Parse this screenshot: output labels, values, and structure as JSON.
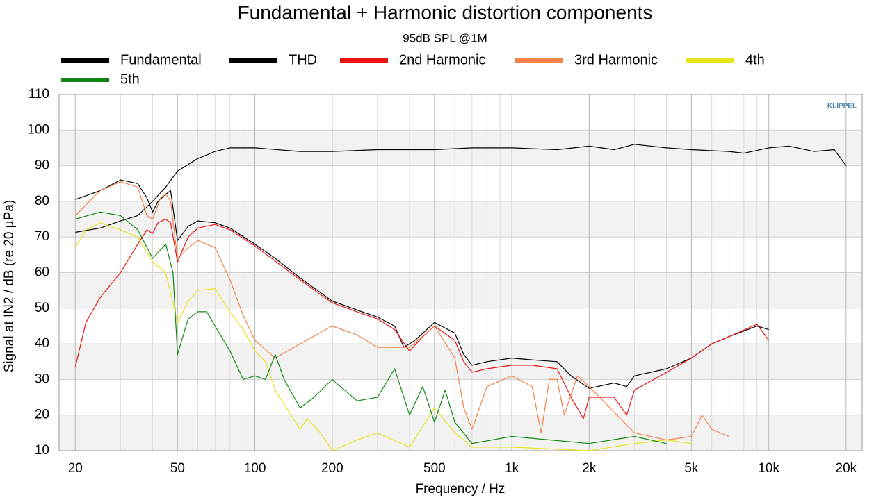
{
  "chart_data": {
    "type": "line",
    "title": "Fundamental + Harmonic distortion components",
    "subtitle": "95dB SPL @1M",
    "x_label": "Frequency / Hz",
    "y_label": "Signal at IN2 / dB (re 20 µPa)",
    "logo": "KLIPPEL",
    "x_log": true,
    "xlim": [
      17.3,
      23100
    ],
    "ylim": [
      10,
      110
    ],
    "xticks": [
      20,
      50,
      100,
      200,
      500,
      {
        "value": 1000,
        "label": "1k"
      },
      {
        "value": 2000,
        "label": "2k"
      },
      {
        "value": 5000,
        "label": "5k"
      },
      {
        "value": 10000,
        "label": "10k"
      },
      {
        "value": 20000,
        "label": "20k"
      }
    ],
    "yticks": [
      10,
      20,
      30,
      40,
      50,
      60,
      70,
      80,
      90,
      100,
      110
    ],
    "grid": true,
    "minor_grid": true,
    "alternate_bands": true,
    "legend": "top",
    "series": [
      {
        "name": "Fundamental",
        "color": "#000000",
        "x": [
          20,
          25,
          30,
          35,
          40,
          45,
          50,
          60,
          70,
          80,
          100,
          150,
          200,
          300,
          400,
          500,
          700,
          1000,
          1500,
          2000,
          2500,
          3000,
          4000,
          5000,
          7000,
          8000,
          10000,
          12000,
          15000,
          18000,
          20000
        ],
        "values": [
          71.3,
          72.5,
          74.5,
          76,
          80,
          84,
          88.5,
          92,
          94,
          95,
          95,
          94,
          94,
          94.5,
          94.5,
          94.5,
          95,
          95,
          94.5,
          95.5,
          94.5,
          96,
          95,
          94.5,
          94,
          93.5,
          95,
          95.5,
          94,
          94.5,
          90
        ]
      },
      {
        "name": "THD",
        "color": "#000000",
        "x": [
          20,
          25,
          30,
          35,
          38,
          40,
          42,
          45,
          47,
          50,
          55,
          60,
          70,
          80,
          100,
          120,
          150,
          200,
          250,
          300,
          350,
          380,
          420,
          500,
          600,
          650,
          700,
          800,
          1000,
          1200,
          1500,
          1700,
          2000,
          2500,
          2800,
          3000,
          4000,
          5000,
          6000,
          7000,
          9000,
          10000
        ],
        "values": [
          80.5,
          83,
          86,
          85,
          81,
          77,
          80,
          82,
          83,
          69,
          73,
          74.5,
          74,
          72.5,
          68,
          64,
          58.5,
          52,
          49.5,
          47.5,
          45,
          39,
          41,
          46,
          43,
          37,
          34,
          35,
          36,
          35.5,
          35,
          31,
          27.5,
          29,
          28,
          31,
          33,
          36,
          40,
          42,
          45,
          44
        ]
      },
      {
        "name": "2nd Harmonic",
        "color": "#ee1111",
        "x": [
          20,
          22,
          25,
          30,
          35,
          38,
          40,
          42,
          45,
          47,
          50,
          55,
          60,
          70,
          80,
          100,
          150,
          200,
          250,
          300,
          350,
          400,
          450,
          500,
          600,
          650,
          700,
          800,
          1000,
          1200,
          1500,
          1700,
          1900,
          2000,
          2500,
          2800,
          3000,
          4000,
          5000,
          6000,
          7000,
          9000,
          10000
        ],
        "values": [
          33.5,
          46,
          53,
          60,
          68,
          72,
          71,
          74,
          75,
          74,
          63,
          70,
          72.5,
          73.5,
          72,
          67.5,
          58,
          51.5,
          49,
          47,
          44,
          38,
          42,
          45,
          41,
          35,
          32,
          33,
          34,
          34,
          33,
          25,
          19,
          25,
          25,
          20,
          27,
          32,
          36,
          40,
          42,
          45.5,
          41
        ]
      },
      {
        "name": "3rd Harmonic",
        "color": "#f5824a",
        "x": [
          20,
          25,
          30,
          35,
          38,
          40,
          43,
          45,
          47,
          50,
          55,
          60,
          70,
          80,
          90,
          100,
          120,
          150,
          200,
          250,
          300,
          400,
          500,
          600,
          650,
          700,
          800,
          1000,
          1200,
          1300,
          1400,
          1500,
          1600,
          1800,
          2000,
          3000,
          4000,
          5000,
          5500,
          6000,
          7000
        ],
        "values": [
          76,
          83,
          85.5,
          84,
          76,
          75,
          81,
          82,
          80,
          64,
          67,
          69,
          67,
          58,
          48,
          41,
          36,
          40,
          45,
          42.5,
          39,
          39,
          45,
          36,
          22,
          16,
          28,
          31,
          28,
          15,
          30,
          30,
          20,
          31,
          28,
          15,
          13,
          14,
          20,
          16,
          14
        ]
      },
      {
        "name": "4th",
        "color": "#e6e61a",
        "x": [
          20,
          22,
          25,
          30,
          35,
          40,
          45,
          50,
          55,
          60,
          70,
          80,
          90,
          100,
          110,
          120,
          150,
          160,
          180,
          200,
          250,
          300,
          400,
          500,
          600,
          700,
          1000,
          2000,
          3000,
          4000,
          5000
        ],
        "values": [
          67,
          72,
          74,
          72,
          70,
          63,
          60,
          46,
          52,
          55,
          55.5,
          49,
          44,
          38,
          35,
          27,
          16,
          19,
          15,
          10,
          13,
          15,
          11,
          22,
          15,
          11,
          11,
          10,
          12,
          13,
          12
        ]
      },
      {
        "name": "5th",
        "color": "#118811",
        "x": [
          20,
          25,
          30,
          35,
          40,
          45,
          48,
          50,
          55,
          60,
          65,
          70,
          80,
          90,
          100,
          110,
          120,
          130,
          150,
          170,
          200,
          250,
          300,
          350,
          400,
          450,
          500,
          550,
          600,
          700,
          1000,
          2000,
          3000,
          4000
        ],
        "values": [
          75,
          77,
          76,
          72,
          64,
          68,
          60,
          37,
          47,
          49,
          49,
          45,
          38,
          30,
          31,
          30,
          37,
          30,
          22,
          25,
          30,
          24,
          25,
          33,
          20,
          28,
          18,
          27,
          18,
          12,
          14,
          12,
          14,
          12
        ]
      }
    ]
  }
}
